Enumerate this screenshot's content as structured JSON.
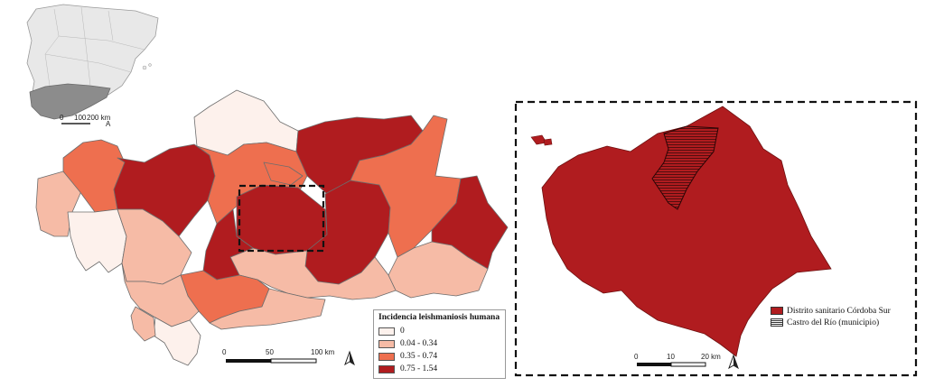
{
  "main_map": {
    "legend": {
      "title": "Incidencia leishmaniosis humana",
      "classes": [
        {
          "label": "0",
          "color": "#fdf1ec"
        },
        {
          "label": "0.04 - 0.34",
          "color": "#f6bba6"
        },
        {
          "label": "0.35 - 0.74",
          "color": "#ee6f4f"
        },
        {
          "label": "0.75 - 1.54",
          "color": "#b01c1f"
        }
      ]
    },
    "scale_bar": {
      "labels": [
        "0",
        "50",
        "100 km"
      ]
    },
    "north_arrow": "A"
  },
  "overview_map": {
    "scale_bar": {
      "labels": [
        "0",
        "100",
        "200 km"
      ]
    },
    "north_arrow": "A",
    "spain_fill": "#e8e8e8",
    "andalucia_fill": "#8c8c8c"
  },
  "inset_map": {
    "legend": {
      "items": [
        {
          "label": "Distrito sanitario Córdoba Sur",
          "type": "fill",
          "color": "#b01c1f"
        },
        {
          "label": "Castro del Río (municipio)",
          "type": "hatch"
        }
      ]
    },
    "scale_bar": {
      "labels": [
        "0",
        "10",
        "20 km"
      ]
    },
    "north_arrow": "A"
  }
}
